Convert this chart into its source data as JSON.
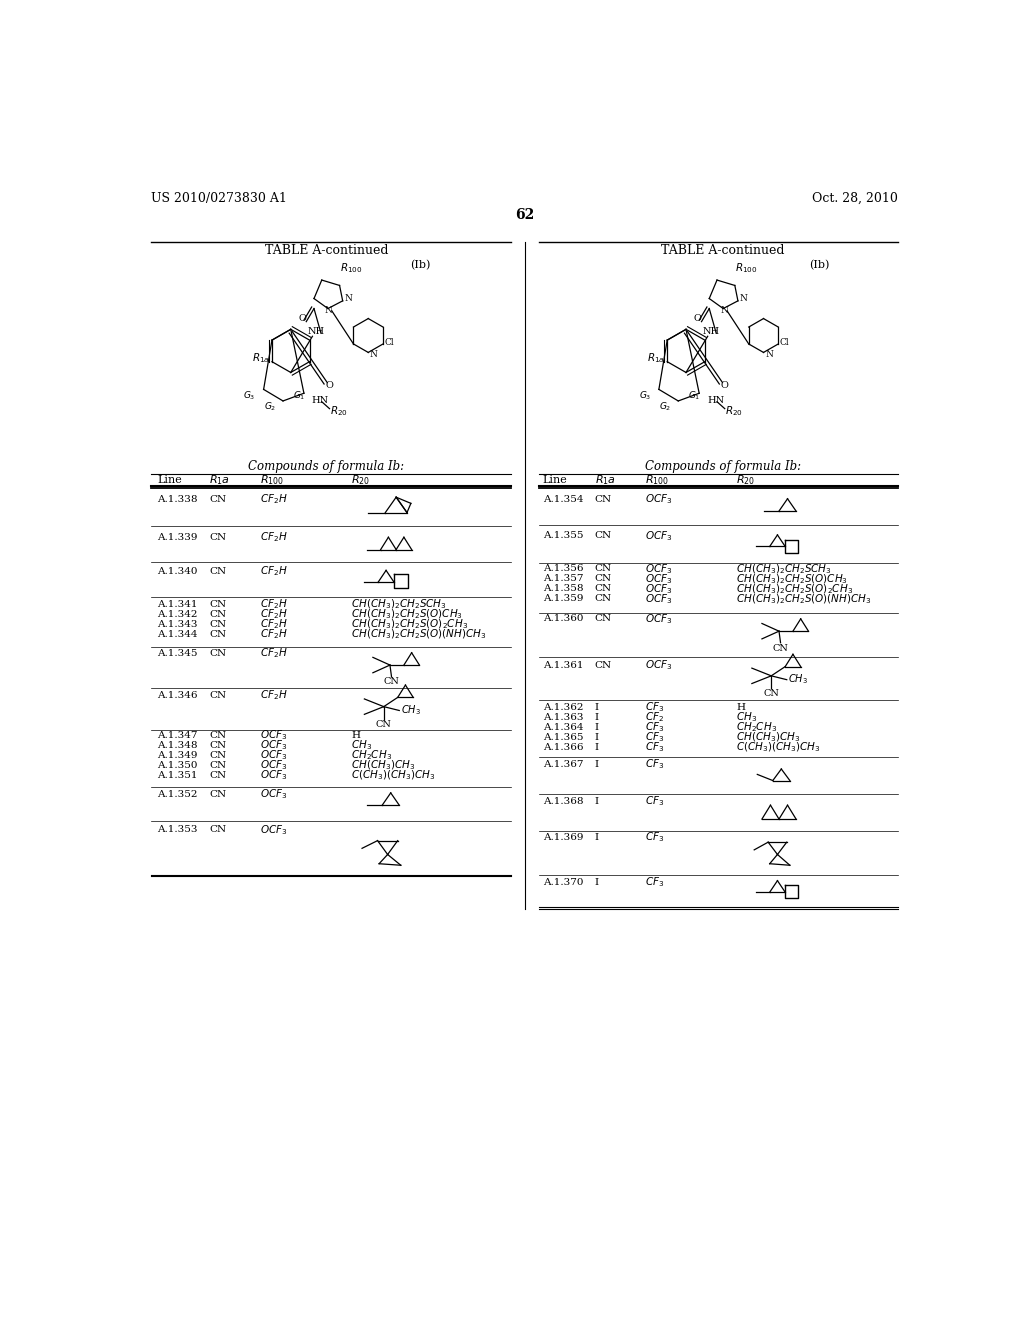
{
  "page_header_left": "US 2010/0273830 A1",
  "page_header_right": "Oct. 28, 2010",
  "page_number": "62",
  "background_color": "#ffffff"
}
